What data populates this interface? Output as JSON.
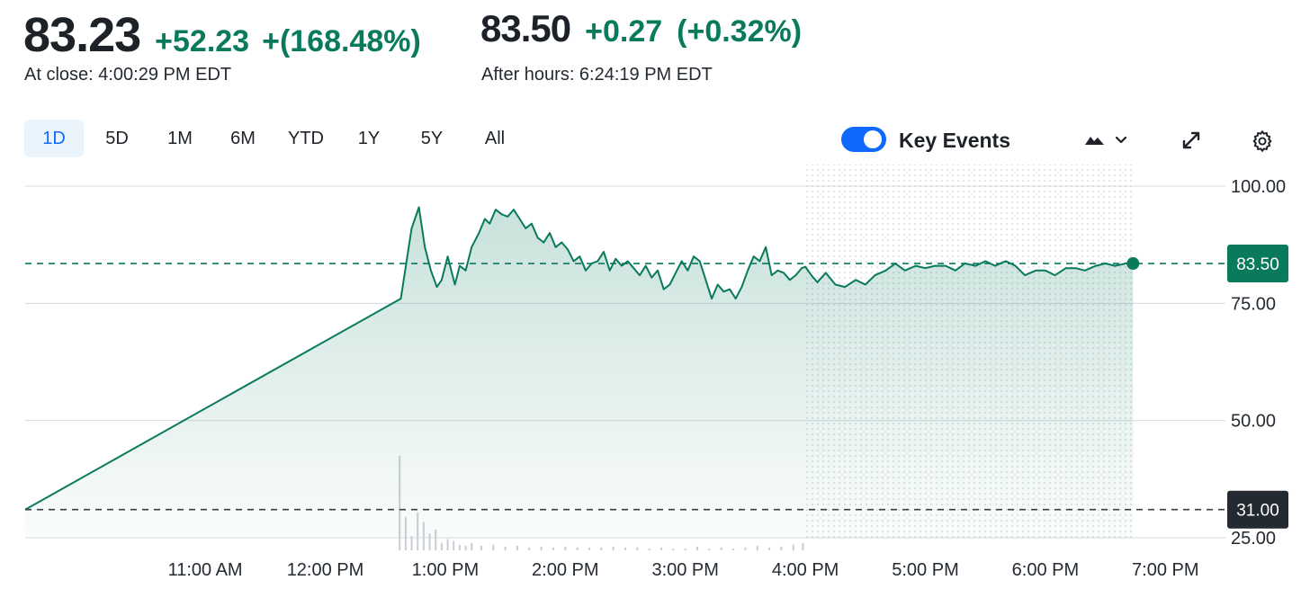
{
  "quote": {
    "price": "83.23",
    "change": "+52.23",
    "change_pct": "+(168.48%)",
    "close_label": "At close: 4:00:29 PM EDT"
  },
  "after_hours": {
    "price": "83.50",
    "change": "+0.27",
    "change_pct": "(+0.32%)",
    "label": "After hours: 6:24:19 PM EDT"
  },
  "range_tabs": [
    {
      "label": "1D",
      "active": true
    },
    {
      "label": "5D"
    },
    {
      "label": "1M"
    },
    {
      "label": "6M"
    },
    {
      "label": "YTD"
    },
    {
      "label": "1Y"
    },
    {
      "label": "5Y"
    },
    {
      "label": "All"
    }
  ],
  "toolbar": {
    "key_events_label": "Key Events",
    "key_events_on": true,
    "chart_type_icon": "mountain-chart-icon",
    "expand_icon": "expand-icon",
    "settings_icon": "gear-icon"
  },
  "colors": {
    "up": "#097a5c",
    "accent": "#0f69ff",
    "prev_close_tag": "#232a31"
  },
  "chart_data": {
    "type": "area",
    "y_ticks": [
      "100.00",
      "75.00",
      "50.00",
      "25.00"
    ],
    "ylim": [
      25,
      100
    ],
    "x_ticks": [
      "11:00 AM",
      "12:00 PM",
      "1:00 PM",
      "2:00 PM",
      "3:00 PM",
      "4:00 PM",
      "5:00 PM",
      "6:00 PM",
      "7:00 PM"
    ],
    "x_tick_hours": [
      11,
      12,
      13,
      14,
      15,
      16,
      17,
      18,
      19
    ],
    "xlim_hours": [
      9.5,
      19.5
    ],
    "after_hours_start": 16.0,
    "current_price_tag": "83.50",
    "current_price": 83.5,
    "previous_close_tag": "31.00",
    "previous_close": 31.0,
    "grid": true,
    "series": [
      {
        "x_hours": [
          9.5,
          12.63,
          12.72,
          12.78,
          12.83,
          12.88,
          12.93,
          12.97,
          13.02,
          13.08,
          13.12,
          13.17,
          13.22,
          13.28,
          13.33,
          13.37,
          13.42,
          13.47,
          13.52,
          13.57,
          13.62,
          13.67,
          13.72,
          13.77,
          13.82,
          13.87,
          13.92,
          13.97,
          14.02,
          14.07,
          14.12,
          14.17,
          14.22,
          14.27,
          14.32,
          14.37,
          14.42,
          14.47,
          14.52,
          14.57,
          14.62,
          14.67,
          14.72,
          14.77,
          14.82,
          14.87,
          14.92,
          14.97,
          15.02,
          15.07,
          15.12,
          15.17,
          15.22,
          15.27,
          15.32,
          15.37,
          15.42,
          15.47,
          15.52,
          15.57,
          15.62,
          15.67,
          15.72,
          15.77,
          15.82,
          15.87,
          15.92,
          15.97,
          16.0,
          16.05,
          16.1,
          16.17,
          16.25,
          16.33,
          16.42,
          16.5,
          16.58,
          16.67,
          16.75,
          16.83,
          16.92,
          17.0,
          17.08,
          17.17,
          17.25,
          17.33,
          17.42,
          17.5,
          17.58,
          17.67,
          17.75,
          17.83,
          17.92,
          18.0,
          18.08,
          18.17,
          18.25,
          18.33,
          18.42,
          18.5,
          18.58,
          18.67,
          18.73
        ],
        "values": [
          31.0,
          76.0,
          91.0,
          95.5,
          87.0,
          82.0,
          78.5,
          80.0,
          85.0,
          79.0,
          83.0,
          82.0,
          87.0,
          90.0,
          93.0,
          92.0,
          95.0,
          94.0,
          93.5,
          95.0,
          93.0,
          91.0,
          92.0,
          89.0,
          88.0,
          90.0,
          87.0,
          88.0,
          86.5,
          84.0,
          85.0,
          82.0,
          83.5,
          84.0,
          86.0,
          82.0,
          84.5,
          83.0,
          84.0,
          82.5,
          81.0,
          83.0,
          80.5,
          82.0,
          78.0,
          79.0,
          81.5,
          84.0,
          82.0,
          85.0,
          84.0,
          80.0,
          76.0,
          79.0,
          77.5,
          78.0,
          76.0,
          78.5,
          82.0,
          85.0,
          84.0,
          87.0,
          81.0,
          82.0,
          81.5,
          80.0,
          81.0,
          82.5,
          82.8,
          81.0,
          79.5,
          81.5,
          79.0,
          78.5,
          80.0,
          79.0,
          81.0,
          82.0,
          83.5,
          82.0,
          83.0,
          82.5,
          83.0,
          83.0,
          82.0,
          83.5,
          83.0,
          84.0,
          83.0,
          84.0,
          83.0,
          81.0,
          82.0,
          82.0,
          81.0,
          82.5,
          82.5,
          82.0,
          83.0,
          83.5,
          83.0,
          83.5,
          83.5
        ]
      }
    ],
    "volume": {
      "x_hours": [
        12.62,
        12.67,
        12.72,
        12.77,
        12.82,
        12.87,
        12.92,
        12.97,
        13.02,
        13.07,
        13.12,
        13.17,
        13.22,
        13.3,
        13.4,
        13.5,
        13.6,
        13.7,
        13.8,
        13.9,
        14.0,
        14.1,
        14.2,
        14.3,
        14.4,
        14.5,
        14.6,
        14.7,
        14.8,
        14.9,
        15.0,
        15.1,
        15.2,
        15.3,
        15.4,
        15.5,
        15.6,
        15.7,
        15.8,
        15.9,
        15.98
      ],
      "values": [
        100,
        35,
        15,
        40,
        30,
        18,
        22,
        8,
        12,
        10,
        6,
        5,
        8,
        5,
        6,
        4,
        5,
        3,
        4,
        3,
        4,
        3,
        3,
        3,
        4,
        3,
        3,
        2,
        3,
        2,
        2,
        4,
        2,
        3,
        2,
        3,
        5,
        3,
        4,
        6,
        8
      ]
    }
  }
}
